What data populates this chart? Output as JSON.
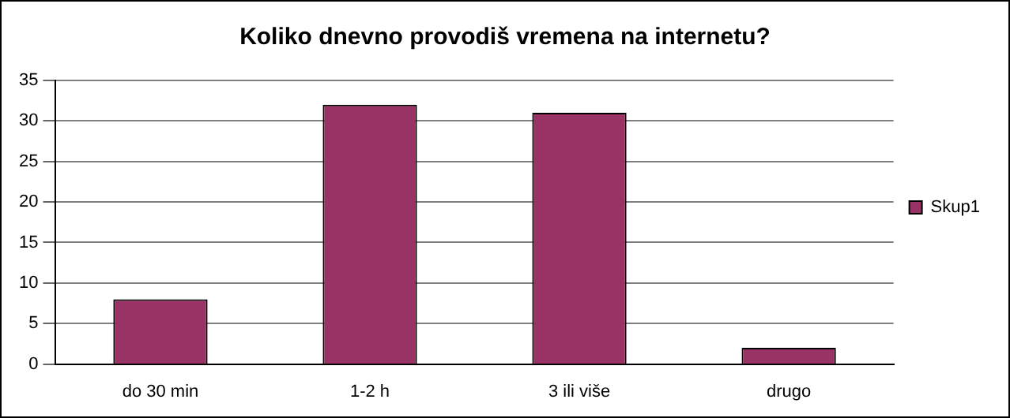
{
  "chart_data": {
    "type": "bar",
    "title": "Koliko dnevno provodiš vremena na internetu?",
    "categories": [
      "do 30 min",
      "1-2 h",
      "3 ili više",
      "drugo"
    ],
    "series": [
      {
        "name": "Skup1",
        "color": "#993366",
        "values": [
          8,
          32,
          31,
          2
        ]
      }
    ],
    "ylim": [
      0,
      35
    ],
    "yticks": [
      0,
      5,
      10,
      15,
      20,
      25,
      30,
      35
    ],
    "grid": "y",
    "legend": "right"
  }
}
